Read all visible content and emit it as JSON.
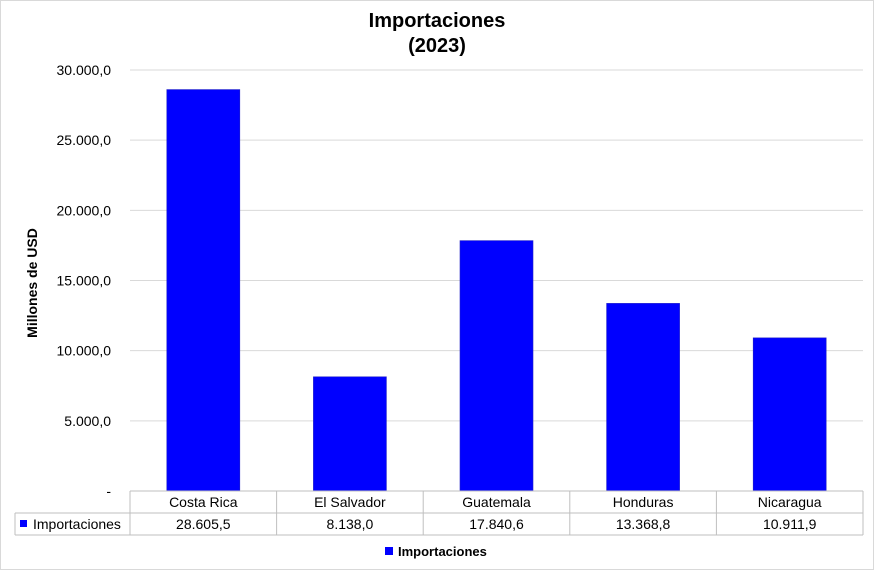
{
  "chart_data": {
    "type": "bar",
    "title": "Importaciones",
    "subtitle": "(2023)",
    "ylabel": "Millones de USD",
    "xlabel": "",
    "ylim": [
      0,
      30000
    ],
    "yticks": [
      "-",
      "5.000,0",
      "10.000,0",
      "15.000,0",
      "20.000,0",
      "25.000,0",
      "30.000,0"
    ],
    "grid": true,
    "legend_position": "bottom",
    "categories": [
      "Costa Rica",
      "El Salvador",
      "Guatemala",
      "Honduras",
      "Nicaragua"
    ],
    "series": [
      {
        "name": "Importaciones",
        "color": "#0000ff",
        "values": [
          28605.5,
          8138.0,
          17840.6,
          13368.8,
          10911.9
        ],
        "labels": [
          "28.605,5",
          "8.138,0",
          "17.840,6",
          "13.368,8",
          "10.911,9"
        ]
      }
    ]
  }
}
